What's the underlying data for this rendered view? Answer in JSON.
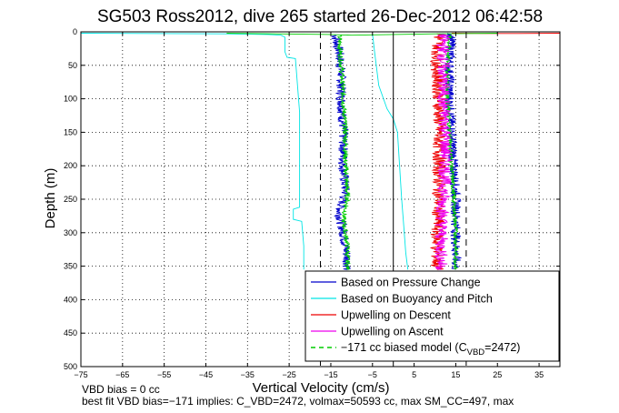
{
  "chart_data": {
    "type": "line",
    "title": "SG503 Ross2012, dive 265 started 26-Dec-2012 06:42:58",
    "xlabel": "Vertical Velocity (cm/s)",
    "ylabel": "Depth (m)",
    "xlim": [
      -75,
      40
    ],
    "ylim": [
      0,
      500
    ],
    "y_reversed": true,
    "grid": true,
    "legend_placement": "bottom-right",
    "x_ticks": [
      -75,
      -65,
      -55,
      -45,
      -35,
      -25,
      -15,
      -5,
      5,
      15,
      25,
      35
    ],
    "x_tick_labels": [
      "−75",
      "−65",
      "−55",
      "−45",
      "−35",
      "−25",
      "−15",
      "−5",
      "5",
      "15",
      "25",
      "35"
    ],
    "y_ticks": [
      0,
      50,
      100,
      150,
      200,
      250,
      300,
      350,
      400,
      450,
      500
    ],
    "y_tick_labels": [
      "0",
      "50",
      "100",
      "150",
      "200",
      "250",
      "300",
      "350",
      "400",
      "450",
      "500"
    ],
    "legend": [
      {
        "label": "Based on Pressure Change",
        "color": "#0000cc",
        "style": "solid"
      },
      {
        "label": "Based on Buoyancy and Pitch",
        "color": "#00e5e5",
        "style": "solid"
      },
      {
        "label": "Upwelling on Descent",
        "color": "#ee0000",
        "style": "solid"
      },
      {
        "label": "Upwelling on Ascent",
        "color": "#ee00ee",
        "style": "solid"
      },
      {
        "label_prefix": "−171 cc biased model (C",
        "label_sub": "VBD",
        "label_suffix": "=2472)",
        "color": "#00cc00",
        "style": "dashed"
      }
    ],
    "series": [
      {
        "color": "#00e5e5",
        "points": [
          [
            -75,
            2
          ],
          [
            -40,
            3
          ],
          [
            -30,
            4
          ],
          [
            -27,
            5
          ],
          [
            -26,
            8
          ],
          [
            -26,
            30
          ],
          [
            -25.5,
            38
          ],
          [
            -23.5,
            40
          ],
          [
            -23,
            80
          ],
          [
            -22.5,
            120
          ],
          [
            -22.5,
            180
          ],
          [
            -22.5,
            230
          ],
          [
            -22.5,
            262
          ],
          [
            -24,
            265
          ],
          [
            -24,
            280
          ],
          [
            -22,
            283
          ],
          [
            -21.5,
            320
          ],
          [
            -21.5,
            355
          ]
        ]
      },
      {
        "color": "#00e5e5",
        "points": [
          [
            -5,
            3
          ],
          [
            -4.5,
            30
          ],
          [
            -3.5,
            80
          ],
          [
            -1.5,
            115
          ],
          [
            0,
            130
          ],
          [
            1,
            150
          ],
          [
            1.5,
            200
          ],
          [
            2,
            250
          ],
          [
            2.5,
            290
          ],
          [
            3,
            330
          ],
          [
            3.5,
            355
          ]
        ]
      },
      {
        "color": "#0000cc",
        "noise": 1.2,
        "points": [
          [
            -14,
            5
          ],
          [
            -13,
            30
          ],
          [
            -12.5,
            60
          ],
          [
            -12.5,
            100
          ],
          [
            -12,
            150
          ],
          [
            -12,
            200
          ],
          [
            -11.5,
            240
          ],
          [
            -13,
            270
          ],
          [
            -12,
            300
          ],
          [
            -11,
            340
          ],
          [
            -11,
            355
          ]
        ]
      },
      {
        "color": "#00cc00",
        "noise": 0.6,
        "points": [
          [
            -13,
            5
          ],
          [
            -12.5,
            50
          ],
          [
            -12,
            100
          ],
          [
            -11.5,
            150
          ],
          [
            -11.5,
            200
          ],
          [
            -11,
            250
          ],
          [
            -12,
            280
          ],
          [
            -11,
            320
          ],
          [
            -11,
            355
          ]
        ]
      },
      {
        "color": "#0000cc",
        "noise": 1.2,
        "points": [
          [
            14,
            2
          ],
          [
            13.5,
            50
          ],
          [
            13.5,
            100
          ],
          [
            14,
            150
          ],
          [
            14.5,
            200
          ],
          [
            15,
            250
          ],
          [
            15,
            300
          ],
          [
            15,
            355
          ]
        ]
      },
      {
        "color": "#00cc00",
        "noise": 0.5,
        "points": [
          [
            13.5,
            5
          ],
          [
            13,
            50
          ],
          [
            13,
            100
          ],
          [
            13.5,
            150
          ],
          [
            14,
            200
          ],
          [
            14.5,
            250
          ],
          [
            15,
            300
          ],
          [
            15,
            355
          ]
        ]
      },
      {
        "color": "#ee0000",
        "noise": 1.6,
        "points": [
          [
            11,
            3
          ],
          [
            10.5,
            50
          ],
          [
            11,
            100
          ],
          [
            11,
            150
          ],
          [
            11,
            200
          ],
          [
            11,
            250
          ],
          [
            10.5,
            300
          ],
          [
            10.5,
            355
          ]
        ]
      },
      {
        "color": "#ee00ee",
        "noise": 1.6,
        "points": [
          [
            12,
            3
          ],
          [
            12,
            50
          ],
          [
            12,
            100
          ],
          [
            12.5,
            150
          ],
          [
            12.5,
            200
          ],
          [
            12,
            250
          ],
          [
            11.5,
            300
          ],
          [
            11.5,
            355
          ]
        ]
      },
      {
        "color": "#ee0000",
        "points": [
          [
            14,
            2
          ],
          [
            22,
            2.5
          ],
          [
            30,
            2.5
          ],
          [
            40,
            2
          ]
        ]
      },
      {
        "color": "#00cc00",
        "points": [
          [
            -40,
            2
          ],
          [
            -15,
            4
          ],
          [
            -10,
            5
          ],
          [
            0,
            4
          ],
          [
            10,
            3
          ],
          [
            25,
            2
          ]
        ]
      }
    ],
    "reference_lines": [
      {
        "x": -17.5,
        "color": "#000000",
        "style": "dashed"
      },
      {
        "x": 17.5,
        "color": "#000000",
        "style": "dashed"
      },
      {
        "x": 0,
        "color": "#000000",
        "style": "solid"
      }
    ]
  },
  "footer": {
    "line1": "VBD bias = 0 cc",
    "line2": "best fit VBD bias=−171 implies: C_VBD=2472, volmax=50593 cc, max SM_CC=497, max"
  }
}
